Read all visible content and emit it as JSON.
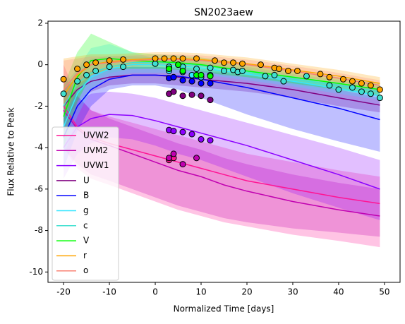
{
  "chart_data": {
    "type": "line",
    "title": "SN2023aew",
    "x_label": "Normalized Time [days]",
    "y_label": "Flux Relative to Peak",
    "xlim": [
      -23.4,
      53.4
    ],
    "ylim": [
      -10.5,
      2.1
    ],
    "xticks": [
      -20,
      -10,
      0,
      10,
      20,
      30,
      40,
      50
    ],
    "yticks": [
      -10,
      -8,
      -6,
      -4,
      -2,
      0,
      2
    ],
    "legend": "lower left",
    "model_x": [
      -20,
      -17,
      -14,
      -10,
      -5,
      0,
      5,
      10,
      15,
      20,
      30,
      40,
      49
    ],
    "series": [
      {
        "name": "UVW2",
        "color": "#ff1493",
        "values": [
          -2.0,
          -3.0,
          -3.5,
          -3.8,
          -4.1,
          -4.4,
          -4.7,
          -5.0,
          -5.3,
          -5.6,
          -6.0,
          -6.4,
          -6.7
        ],
        "band_lo": [
          -4,
          -5,
          -5.5,
          -5.8,
          -6.2,
          -6.6,
          -7.0,
          -7.3,
          -7.6,
          -7.8,
          -8.2,
          -8.5,
          -8.8
        ],
        "band_hi": [
          0,
          -1.5,
          -2.2,
          -2.5,
          -2.8,
          -3.1,
          -3.4,
          -3.7,
          -4.0,
          -4.3,
          -4.7,
          -5.1,
          -5.4
        ],
        "obs_x": [
          3,
          4
        ],
        "obs_y": [
          -4.6,
          -4.5
        ]
      },
      {
        "name": "UVM2",
        "color": "#c000b0",
        "values": [
          -2.2,
          -3.1,
          -3.6,
          -3.9,
          -4.3,
          -4.7,
          -5.1,
          -5.4,
          -5.8,
          -6.1,
          -6.6,
          -7.0,
          -7.3
        ],
        "band_lo": [
          -4.0,
          -4.8,
          -5.3,
          -5.6,
          -6.0,
          -6.4,
          -6.8,
          -7.1,
          -7.4,
          -7.6,
          -7.9,
          -8.1,
          -8.3
        ],
        "band_hi": [
          -0.5,
          -1.5,
          -2.2,
          -2.6,
          -3.0,
          -3.4,
          -3.8,
          -4.1,
          -4.5,
          -4.8,
          -5.3,
          -5.7,
          -6.0
        ],
        "obs_x": [
          3,
          4,
          6,
          9
        ],
        "obs_y": [
          -4.5,
          -4.3,
          -4.8,
          -4.5
        ]
      },
      {
        "name": "UVW1",
        "color": "#8b00ff",
        "values": [
          -4.0,
          -3.0,
          -2.6,
          -2.4,
          -2.45,
          -2.7,
          -3.0,
          -3.3,
          -3.6,
          -3.9,
          -4.6,
          -5.3,
          -6.0
        ],
        "band_lo": [
          -5.5,
          -4.3,
          -3.8,
          -3.5,
          -3.6,
          -3.9,
          -4.3,
          -4.6,
          -5.0,
          -5.4,
          -6.2,
          -6.9,
          -7.5
        ],
        "band_hi": [
          -2.5,
          -1.8,
          -1.4,
          -1.3,
          -1.4,
          -1.6,
          -1.9,
          -2.2,
          -2.5,
          -2.8,
          -3.4,
          -4.0,
          -4.6
        ],
        "obs_x": [
          3,
          4,
          6,
          8,
          10,
          12
        ],
        "obs_y": [
          -3.15,
          -3.2,
          -3.25,
          -3.35,
          -3.6,
          -3.65
        ]
      },
      {
        "name": "U",
        "color": "#800080",
        "values": [
          -2.0,
          -1.2,
          -0.8,
          -0.6,
          -0.5,
          -0.5,
          -0.6,
          -0.7,
          -0.8,
          -0.9,
          -1.2,
          -1.6,
          -1.95
        ],
        "band_lo": [
          -2.8,
          -1.8,
          -1.3,
          -1.0,
          -0.9,
          -0.9,
          -1.0,
          -1.1,
          -1.2,
          -1.3,
          -1.6,
          -2.0,
          -2.3
        ],
        "band_hi": [
          -1.2,
          -0.6,
          -0.3,
          -0.2,
          -0.1,
          -0.1,
          -0.2,
          -0.3,
          -0.4,
          -0.5,
          -0.8,
          -1.2,
          -1.6
        ],
        "obs_x": [
          3,
          4,
          6,
          8,
          10,
          12
        ],
        "obs_y": [
          -1.4,
          -1.3,
          -1.5,
          -1.45,
          -1.5,
          -1.7
        ]
      },
      {
        "name": "B",
        "color": "#0000ff",
        "values": [
          -3.5,
          -2.0,
          -1.2,
          -0.7,
          -0.5,
          -0.5,
          -0.55,
          -0.7,
          -0.9,
          -1.1,
          -1.6,
          -2.1,
          -2.65
        ],
        "band_lo": [
          -5,
          -3.2,
          -2.0,
          -1.2,
          -1.0,
          -1.0,
          -1.2,
          -1.6,
          -2.0,
          -2.4,
          -3.1,
          -3.7,
          -4.2
        ],
        "band_hi": [
          -2,
          -1.0,
          -0.5,
          -0.2,
          -0.1,
          -0.1,
          -0.1,
          -0.2,
          -0.3,
          -0.4,
          -0.6,
          -0.9,
          -1.2
        ],
        "obs_x": [
          3,
          4,
          6,
          8,
          10,
          12
        ],
        "obs_y": [
          -0.65,
          -0.6,
          -0.75,
          -0.8,
          -0.9,
          -0.9
        ]
      },
      {
        "name": "g",
        "color": "#33e6ff",
        "values": [
          -3,
          -1.4,
          -0.6,
          -0.2,
          0,
          0,
          -0.05,
          -0.15,
          -0.3,
          -0.45,
          -0.8,
          -1.15,
          -1.5
        ],
        "band_lo": [
          -4.5,
          -2.5,
          -1.2,
          -0.6,
          -0.4,
          -0.4,
          -0.4,
          -0.5,
          -0.6,
          -0.75,
          -1.05,
          -1.4,
          -1.7
        ],
        "band_hi": [
          -1.5,
          -0.2,
          0.8,
          1.0,
          0.6,
          0.3,
          0.2,
          0.1,
          -0.05,
          -0.2,
          -0.55,
          -0.9,
          -1.25
        ],
        "obs_x": [
          3,
          6,
          8,
          10,
          12
        ],
        "obs_y": [
          -0.3,
          -0.35,
          -0.5,
          -0.6,
          -0.5
        ]
      },
      {
        "name": "c",
        "color": "#40e0d0",
        "values": [
          -2,
          -0.9,
          -0.4,
          -0.1,
          0.1,
          0.1,
          0.05,
          -0.05,
          -0.2,
          -0.35,
          -0.7,
          -1.0,
          -1.3
        ],
        "band_lo": [
          -3,
          -1.6,
          -0.8,
          -0.4,
          -0.2,
          -0.2,
          -0.2,
          -0.3,
          -0.45,
          -0.6,
          -0.95,
          -1.25,
          -1.55
        ],
        "band_hi": [
          -1,
          -0.2,
          0.3,
          0.4,
          0.4,
          0.35,
          0.3,
          0.2,
          0.05,
          -0.1,
          -0.45,
          -0.75,
          -1.05
        ],
        "obs_x": [
          -20,
          -17,
          -15,
          -13,
          -10,
          -7,
          0,
          3,
          6,
          9,
          12,
          15,
          17,
          18,
          19,
          24,
          26,
          28,
          33,
          38,
          40,
          43,
          45,
          47,
          49
        ],
        "obs_y": [
          -1.4,
          -0.8,
          -0.5,
          -0.3,
          -0.1,
          -0.1,
          0.05,
          -0.1,
          -0.1,
          -0.2,
          -0.15,
          -0.3,
          -0.25,
          -0.35,
          -0.3,
          -0.55,
          -0.5,
          -0.8,
          -0.55,
          -1.0,
          -1.2,
          -1.1,
          -1.3,
          -1.4,
          -1.6
        ]
      },
      {
        "name": "V",
        "color": "#00ff00",
        "values": [
          -2.5,
          -0.6,
          0.2,
          0.3,
          0.2,
          0.15,
          0.1,
          0,
          -0.15,
          -0.3,
          -0.6,
          -0.9,
          -1.2
        ],
        "band_lo": [
          -4,
          -1.8,
          -0.5,
          -0.2,
          -0.2,
          -0.2,
          -0.25,
          -0.35,
          -0.5,
          -0.6,
          -0.9,
          -1.2,
          -1.5
        ],
        "band_hi": [
          -1,
          0.6,
          1.5,
          1.1,
          0.6,
          0.5,
          0.45,
          0.35,
          0.2,
          0.05,
          -0.3,
          -0.6,
          -0.9
        ],
        "obs_x": [
          3,
          5,
          6,
          9,
          10,
          12
        ],
        "obs_y": [
          -0.2,
          0,
          -0.3,
          -0.5,
          -0.5,
          -0.55
        ]
      },
      {
        "name": "r",
        "color": "#ffa500",
        "values": [
          -1.5,
          -0.5,
          0,
          0.15,
          0.25,
          0.3,
          0.3,
          0.25,
          0.15,
          0.05,
          -0.25,
          -0.55,
          -0.9
        ],
        "band_lo": [
          -2.5,
          -1.2,
          -0.5,
          -0.2,
          -0.05,
          0,
          0,
          -0.05,
          -0.15,
          -0.25,
          -0.55,
          -0.85,
          -1.2
        ],
        "band_hi": [
          0.3,
          0.4,
          0.5,
          0.5,
          0.55,
          0.6,
          0.6,
          0.55,
          0.45,
          0.35,
          0.05,
          -0.25,
          -0.6
        ],
        "obs_x": [
          -20,
          -17,
          -15,
          -13,
          -10,
          -7,
          0,
          2,
          4,
          6,
          9,
          13,
          15,
          17,
          19,
          23,
          26,
          27,
          29,
          31,
          36,
          38,
          41,
          43,
          45,
          47,
          49
        ],
        "obs_y": [
          -0.7,
          -0.2,
          0,
          0.1,
          0.2,
          0.25,
          0.3,
          0.3,
          0.3,
          0.3,
          0.3,
          0.2,
          0.1,
          0.1,
          0.05,
          0,
          -0.15,
          -0.2,
          -0.3,
          -0.3,
          -0.45,
          -0.6,
          -0.7,
          -0.8,
          -0.9,
          -1.0,
          -1.2
        ]
      },
      {
        "name": "o",
        "color": "#fa8072",
        "values": [
          -1.2,
          -0.4,
          0,
          0.1,
          0.2,
          0.25,
          0.25,
          0.2,
          0.1,
          0,
          -0.3,
          -0.65,
          -1.0
        ],
        "band_lo": [
          -2,
          -1.0,
          -0.4,
          -0.2,
          -0.1,
          -0.05,
          -0.05,
          -0.1,
          -0.2,
          -0.3,
          -0.6,
          -0.95,
          -1.3
        ],
        "band_hi": [
          0.2,
          0.3,
          0.4,
          0.4,
          0.45,
          0.5,
          0.5,
          0.45,
          0.35,
          0.25,
          -0.05,
          -0.4,
          -0.75
        ],
        "obs_x": [],
        "obs_y": []
      }
    ]
  }
}
